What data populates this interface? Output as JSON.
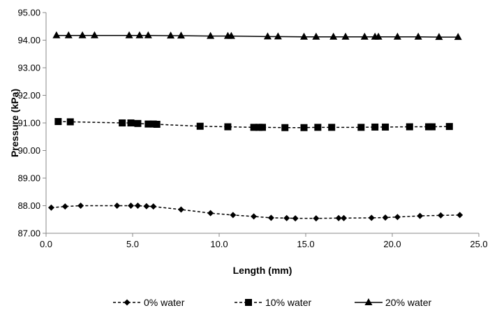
{
  "chart_data": {
    "type": "line",
    "title": "",
    "xlabel": "Length (mm)",
    "ylabel": "Pressure (kPa)",
    "xlim": [
      0,
      25
    ],
    "ylim": [
      87,
      95
    ],
    "xticks": [
      "0.0",
      "5.0",
      "10.0",
      "15.0",
      "20.0",
      "25.0"
    ],
    "yticks": [
      "87.00",
      "88.00",
      "89.00",
      "90.00",
      "91.00",
      "92.00",
      "93.00",
      "94.00",
      "95.00"
    ],
    "grid": false,
    "legend_position": "bottom",
    "series": [
      {
        "name": "0% water",
        "marker": "diamond",
        "line_style": "dashed",
        "color": "#000000",
        "x": [
          0.3,
          1.1,
          2.0,
          4.1,
          4.9,
          5.3,
          5.8,
          6.2,
          7.8,
          9.5,
          10.8,
          12.0,
          13.0,
          13.9,
          14.4,
          15.6,
          16.9,
          17.2,
          18.8,
          19.6,
          20.3,
          21.6,
          22.8,
          23.9
        ],
        "y": [
          87.93,
          87.97,
          88.0,
          88.0,
          88.0,
          88.0,
          87.98,
          87.97,
          87.86,
          87.73,
          87.66,
          87.61,
          87.56,
          87.55,
          87.54,
          87.54,
          87.55,
          87.55,
          87.56,
          87.57,
          87.59,
          87.63,
          87.65,
          87.66
        ]
      },
      {
        "name": "10% water",
        "marker": "square",
        "line_style": "dashed",
        "color": "#000000",
        "x": [
          0.7,
          1.4,
          4.4,
          4.9,
          5.3,
          5.9,
          6.2,
          6.4,
          8.9,
          10.5,
          12.0,
          12.3,
          12.5,
          13.8,
          14.9,
          15.7,
          16.5,
          18.2,
          19.0,
          19.6,
          21.0,
          22.1,
          22.3,
          23.3
        ],
        "y": [
          91.05,
          91.04,
          91.0,
          91.0,
          90.98,
          90.96,
          90.96,
          90.95,
          90.88,
          90.86,
          90.84,
          90.84,
          90.84,
          90.83,
          90.83,
          90.84,
          90.84,
          90.84,
          90.85,
          90.85,
          90.86,
          90.86,
          90.86,
          90.87
        ]
      },
      {
        "name": "20% water",
        "marker": "triangle",
        "line_style": "solid",
        "color": "#000000",
        "x": [
          0.6,
          1.3,
          2.1,
          2.8,
          4.8,
          5.4,
          5.9,
          7.2,
          7.8,
          9.5,
          10.5,
          10.7,
          12.8,
          13.4,
          14.9,
          15.6,
          16.6,
          17.3,
          18.4,
          19.0,
          19.2,
          20.3,
          21.5,
          22.7,
          23.8
        ],
        "y": [
          94.17,
          94.17,
          94.17,
          94.17,
          94.17,
          94.17,
          94.17,
          94.16,
          94.16,
          94.15,
          94.15,
          94.15,
          94.13,
          94.13,
          94.12,
          94.12,
          94.12,
          94.12,
          94.12,
          94.12,
          94.12,
          94.12,
          94.12,
          94.11,
          94.11
        ]
      }
    ]
  }
}
